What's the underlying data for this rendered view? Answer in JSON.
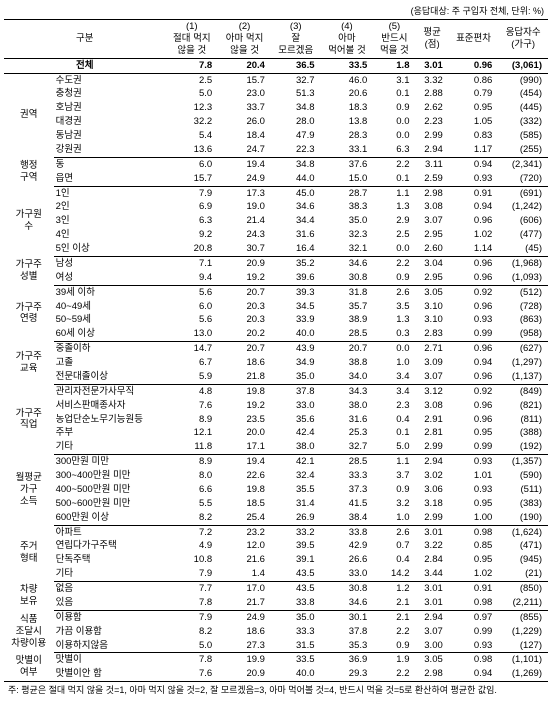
{
  "caption": "(응답대상: 주 구입자 전체, 단위: %)",
  "headers": {
    "category": "구분",
    "c1": "(1)\n절대 먹지\n않을 것",
    "c2": "(2)\n아마 먹지\n않을 것",
    "c3": "(3)\n잘\n모르겠음",
    "c4": "(4)\n아마\n먹어볼 것",
    "c5": "(5)\n반드시\n먹을 것",
    "avg": "평균\n(점)",
    "std": "표준편차",
    "n": "응답자수\n(가구)"
  },
  "total": {
    "label": "전체",
    "v": [
      "7.8",
      "20.4",
      "36.5",
      "33.5",
      "1.8",
      "3.01",
      "0.96",
      "(3,061)"
    ]
  },
  "groups": [
    {
      "cat": "권역",
      "rows": [
        {
          "label": "수도권",
          "v": [
            "2.5",
            "15.7",
            "32.7",
            "46.0",
            "3.1",
            "3.32",
            "0.86",
            "(990)"
          ]
        },
        {
          "label": "충청권",
          "v": [
            "5.0",
            "23.0",
            "51.3",
            "20.6",
            "0.1",
            "2.88",
            "0.79",
            "(454)"
          ]
        },
        {
          "label": "호남권",
          "v": [
            "12.3",
            "33.7",
            "34.8",
            "18.3",
            "0.9",
            "2.62",
            "0.95",
            "(445)"
          ]
        },
        {
          "label": "대경권",
          "v": [
            "32.2",
            "26.0",
            "28.0",
            "13.8",
            "0.0",
            "2.23",
            "1.05",
            "(332)"
          ]
        },
        {
          "label": "동남권",
          "v": [
            "5.4",
            "18.4",
            "47.9",
            "28.3",
            "0.0",
            "2.99",
            "0.83",
            "(585)"
          ]
        },
        {
          "label": "강원권",
          "v": [
            "13.6",
            "24.7",
            "22.3",
            "33.1",
            "6.3",
            "2.94",
            "1.17",
            "(255)"
          ]
        }
      ]
    },
    {
      "cat": "행정\n구역",
      "rows": [
        {
          "label": "동",
          "v": [
            "6.0",
            "19.4",
            "34.8",
            "37.6",
            "2.2",
            "3.11",
            "0.94",
            "(2,341)"
          ]
        },
        {
          "label": "읍면",
          "v": [
            "15.7",
            "24.9",
            "44.0",
            "15.0",
            "0.1",
            "2.59",
            "0.93",
            "(720)"
          ]
        }
      ]
    },
    {
      "cat": "가구원\n수",
      "rows": [
        {
          "label": "1인",
          "v": [
            "7.9",
            "17.3",
            "45.0",
            "28.7",
            "1.1",
            "2.98",
            "0.91",
            "(691)"
          ]
        },
        {
          "label": "2인",
          "v": [
            "6.9",
            "19.0",
            "34.6",
            "38.3",
            "1.3",
            "3.08",
            "0.94",
            "(1,242)"
          ]
        },
        {
          "label": "3인",
          "v": [
            "6.3",
            "21.4",
            "34.4",
            "35.0",
            "2.9",
            "3.07",
            "0.96",
            "(606)"
          ]
        },
        {
          "label": "4인",
          "v": [
            "9.2",
            "24.3",
            "31.6",
            "32.3",
            "2.5",
            "2.95",
            "1.02",
            "(477)"
          ]
        },
        {
          "label": "5인 이상",
          "v": [
            "20.8",
            "30.7",
            "16.4",
            "32.1",
            "0.0",
            "2.60",
            "1.14",
            "(45)"
          ]
        }
      ]
    },
    {
      "cat": "가구주\n성별",
      "rows": [
        {
          "label": "남성",
          "v": [
            "7.1",
            "20.9",
            "35.2",
            "34.6",
            "2.2",
            "3.04",
            "0.96",
            "(1,968)"
          ]
        },
        {
          "label": "여성",
          "v": [
            "9.4",
            "19.2",
            "39.6",
            "30.8",
            "0.9",
            "2.95",
            "0.96",
            "(1,093)"
          ]
        }
      ]
    },
    {
      "cat": "가구주\n연령",
      "rows": [
        {
          "label": "39세 이하",
          "v": [
            "5.6",
            "20.7",
            "39.3",
            "31.8",
            "2.6",
            "3.05",
            "0.92",
            "(512)"
          ]
        },
        {
          "label": "40~49세",
          "v": [
            "6.0",
            "20.3",
            "34.5",
            "35.7",
            "3.5",
            "3.10",
            "0.96",
            "(728)"
          ]
        },
        {
          "label": "50~59세",
          "v": [
            "5.6",
            "20.3",
            "33.9",
            "38.9",
            "1.3",
            "3.10",
            "0.93",
            "(863)"
          ]
        },
        {
          "label": "60세 이상",
          "v": [
            "13.0",
            "20.2",
            "40.0",
            "28.5",
            "0.3",
            "2.83",
            "0.99",
            "(958)"
          ]
        }
      ]
    },
    {
      "cat": "가구주\n교육",
      "rows": [
        {
          "label": "중졸이하",
          "v": [
            "14.7",
            "20.7",
            "43.9",
            "20.7",
            "0.0",
            "2.71",
            "0.96",
            "(627)"
          ]
        },
        {
          "label": "고졸",
          "v": [
            "6.7",
            "18.6",
            "34.9",
            "38.8",
            "1.0",
            "3.09",
            "0.94",
            "(1,297)"
          ]
        },
        {
          "label": "전문대졸이상",
          "v": [
            "5.9",
            "21.8",
            "35.0",
            "34.0",
            "3.4",
            "3.07",
            "0.96",
            "(1,137)"
          ]
        }
      ]
    },
    {
      "cat": "가구주\n직업",
      "rows": [
        {
          "label": "관리자전문가사무직",
          "v": [
            "4.8",
            "19.8",
            "37.8",
            "34.3",
            "3.4",
            "3.12",
            "0.92",
            "(849)"
          ]
        },
        {
          "label": "서비스판매종사자",
          "v": [
            "7.6",
            "19.2",
            "33.0",
            "38.0",
            "2.3",
            "3.08",
            "0.96",
            "(821)"
          ]
        },
        {
          "label": "농업단순노무기능원등",
          "v": [
            "8.9",
            "23.5",
            "35.6",
            "31.6",
            "0.4",
            "2.91",
            "0.96",
            "(811)"
          ]
        },
        {
          "label": "주부",
          "v": [
            "12.1",
            "20.0",
            "42.4",
            "25.3",
            "0.1",
            "2.81",
            "0.95",
            "(388)"
          ]
        },
        {
          "label": "기타",
          "v": [
            "11.8",
            "17.1",
            "38.0",
            "32.7",
            "5.0",
            "2.99",
            "0.99",
            "(192)"
          ]
        }
      ]
    },
    {
      "cat": "월평균\n가구\n소득",
      "rows": [
        {
          "label": "300만원 미만",
          "v": [
            "8.9",
            "19.4",
            "42.1",
            "28.5",
            "1.1",
            "2.94",
            "0.93",
            "(1,357)"
          ]
        },
        {
          "label": "300~400만원 미만",
          "v": [
            "8.0",
            "22.6",
            "32.4",
            "33.3",
            "3.7",
            "3.02",
            "1.01",
            "(590)"
          ]
        },
        {
          "label": "400~500만원 미만",
          "v": [
            "6.6",
            "19.8",
            "35.5",
            "37.3",
            "0.9",
            "3.06",
            "0.93",
            "(511)"
          ]
        },
        {
          "label": "500~600만원 미만",
          "v": [
            "5.5",
            "18.5",
            "31.4",
            "41.5",
            "3.2",
            "3.18",
            "0.95",
            "(383)"
          ]
        },
        {
          "label": "600만원 이상",
          "v": [
            "8.2",
            "25.4",
            "26.9",
            "38.4",
            "1.0",
            "2.99",
            "1.00",
            "(190)"
          ]
        }
      ]
    },
    {
      "cat": "주거\n형태",
      "rows": [
        {
          "label": "아파트",
          "v": [
            "7.2",
            "23.2",
            "33.2",
            "33.8",
            "2.6",
            "3.01",
            "0.98",
            "(1,624)"
          ]
        },
        {
          "label": "연립다가구주택",
          "v": [
            "4.9",
            "12.0",
            "39.5",
            "42.9",
            "0.7",
            "3.22",
            "0.85",
            "(471)"
          ]
        },
        {
          "label": "단독주택",
          "v": [
            "10.8",
            "21.6",
            "39.1",
            "26.6",
            "0.4",
            "2.84",
            "0.95",
            "(945)"
          ]
        },
        {
          "label": "기타",
          "v": [
            "7.9",
            "1.4",
            "43.5",
            "33.0",
            "14.2",
            "3.44",
            "1.02",
            "(21)"
          ]
        }
      ]
    },
    {
      "cat": "차량\n보유",
      "rows": [
        {
          "label": "없음",
          "v": [
            "7.7",
            "17.0",
            "43.5",
            "30.8",
            "1.2",
            "3.01",
            "0.91",
            "(850)"
          ]
        },
        {
          "label": "있음",
          "v": [
            "7.8",
            "21.7",
            "33.8",
            "34.6",
            "2.1",
            "3.01",
            "0.98",
            "(2,211)"
          ]
        }
      ]
    },
    {
      "cat": "식품\n조달시\n차량이용",
      "rows": [
        {
          "label": "이용함",
          "v": [
            "7.9",
            "24.9",
            "35.0",
            "30.1",
            "2.1",
            "2.94",
            "0.97",
            "(855)"
          ]
        },
        {
          "label": "가끔 이용함",
          "v": [
            "8.2",
            "18.6",
            "33.3",
            "37.8",
            "2.2",
            "3.07",
            "0.99",
            "(1,229)"
          ]
        },
        {
          "label": "이용하지않음",
          "v": [
            "5.0",
            "27.3",
            "31.5",
            "35.3",
            "0.9",
            "3.00",
            "0.93",
            "(127)"
          ]
        }
      ]
    },
    {
      "cat": "맛별이\n여부",
      "rows": [
        {
          "label": "맛별이",
          "v": [
            "7.8",
            "19.9",
            "33.5",
            "36.9",
            "1.9",
            "3.05",
            "0.98",
            "(1,101)"
          ]
        },
        {
          "label": "맛별이안 함",
          "v": [
            "7.6",
            "20.9",
            "40.0",
            "29.3",
            "2.2",
            "2.98",
            "0.94",
            "(1,269)"
          ]
        }
      ]
    }
  ],
  "note": "주: 평균은 절대 먹지 않을 것=1, 아마 먹지 않을 것=2, 잘 모르겠음=3, 아마 먹어볼 것=4, 반드시 먹을 것=5로 환산하여 평균한 값임."
}
